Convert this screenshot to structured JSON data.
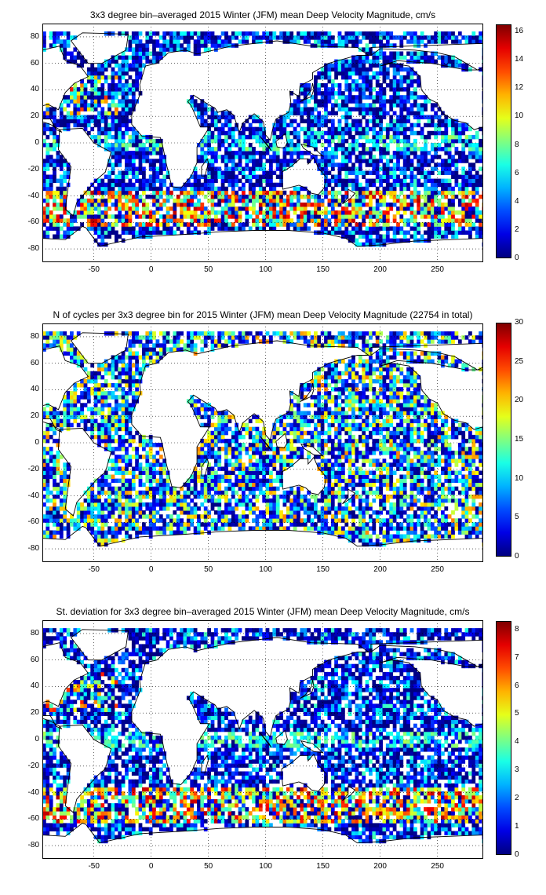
{
  "panels": [
    {
      "title": "3x3 degree bin–averaged 2015 Winter (JFM) mean Deep Velocity Magnitude, cm/s",
      "colorbar_ticks": [
        "16",
        "14",
        "12",
        "10",
        "8",
        "6",
        "4",
        "2",
        "0"
      ],
      "colorbar_max": 16.5
    },
    {
      "title": "N of cycles per 3x3 degree bin for 2015 Winter (JFM) mean Deep Velocity Magnitude (22754 in total)",
      "colorbar_ticks": [
        "30",
        "25",
        "20",
        "15",
        "10",
        "5",
        "0"
      ],
      "colorbar_max": 30
    },
    {
      "title": "St. deviation for 3x3 degree bin–averaged 2015 Winter (JFM) mean Deep Velocity Magnitude, cm/s",
      "colorbar_ticks": [
        "8",
        "7",
        "6",
        "5",
        "4",
        "3",
        "2",
        "1",
        "0"
      ],
      "colorbar_max": 8.3
    }
  ],
  "x_ticks": [
    "-50",
    "0",
    "50",
    "100",
    "150",
    "200",
    "250"
  ],
  "y_ticks": [
    "80",
    "60",
    "40",
    "20",
    "0",
    "-20",
    "-40",
    "-60",
    "-80"
  ],
  "chart_data": {
    "type": "heatmap",
    "x_range": [
      -95,
      290
    ],
    "y_range": [
      -90,
      90
    ],
    "grid": true,
    "colormap": "jet",
    "colors": [
      "#00008f",
      "#0000ff",
      "#00ffff",
      "#ffff00",
      "#ff0000",
      "#800000"
    ]
  }
}
